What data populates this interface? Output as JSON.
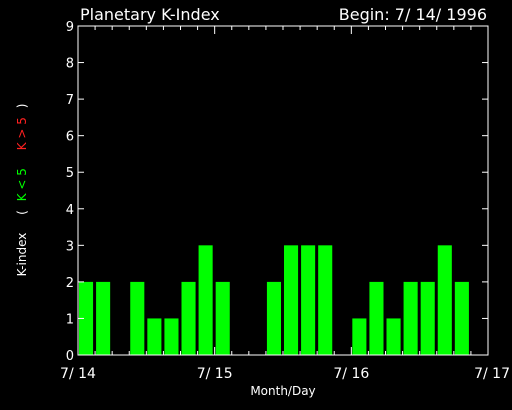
{
  "chart_data": {
    "type": "bar",
    "title": "Planetary K-Index",
    "begin_label": "Begin: 7/ 14/ 1996",
    "xlabel": "Month/Day",
    "ylabel": {
      "prefix": "K-index",
      "open_paren": "(",
      "low_range": "K < 5",
      "high_range": "K > 5",
      "close_paren": ")"
    },
    "ylim": [
      0,
      9
    ],
    "y_ticks": [
      "0",
      "1",
      "2",
      "3",
      "4",
      "5",
      "6",
      "7",
      "8",
      "9"
    ],
    "x_ticks": [
      "7/ 14",
      "7/ 15",
      "7/ 16",
      "7/ 17"
    ],
    "bins_per_day": 8,
    "values": [
      2,
      2,
      0,
      2,
      1,
      1,
      2,
      3,
      2,
      0,
      0,
      2,
      3,
      3,
      3,
      0,
      1,
      2,
      1,
      2,
      2,
      3,
      2,
      0
    ],
    "threshold": 5,
    "colors": {
      "background": "#000000",
      "axis": "#ffffff",
      "text": "#ffffff",
      "bar_low": "#00ff00",
      "bar_high": "#ff0000",
      "label_low": "#00ff00",
      "label_high": "#ff2020"
    },
    "grid": false
  }
}
